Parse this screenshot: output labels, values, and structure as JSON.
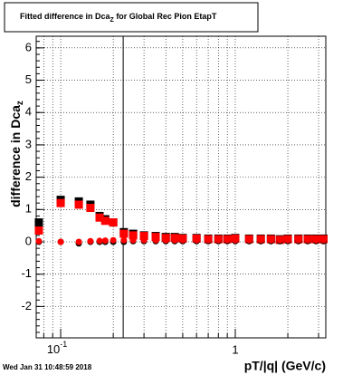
{
  "chart_data": {
    "type": "scatter",
    "title": {
      "text": "Fitted difference in Dca",
      "sub": "Z",
      "rest": " for Global Rec Pion EtapT"
    },
    "y_label": {
      "text": "difference in Dca",
      "sub": "z"
    },
    "x_label": "pT/|q| (GeV/c)",
    "timestamp": "Wed Jan 31 10:48:59 2018",
    "log_x": true,
    "grid": true,
    "xlim": [
      0.0724,
      3.3
    ],
    "ylim": [
      -2.97,
      6.36
    ],
    "xticks": [
      {
        "value": 0.1,
        "label": "10",
        "exponent": "-1"
      },
      1
    ],
    "xminorticks": [
      0.08,
      0.09,
      0.2,
      0.3,
      0.4,
      0.5,
      0.6,
      0.7,
      0.8,
      0.9,
      2,
      3
    ],
    "yticks": [
      -2,
      -1,
      0,
      1,
      2,
      3,
      4,
      5,
      6
    ],
    "vline": 0.228,
    "x": [
      0.075,
      0.1,
      0.127,
      0.148,
      0.167,
      0.18,
      0.2,
      0.23,
      0.26,
      0.3,
      0.35,
      0.4,
      0.45,
      0.5,
      0.6,
      0.7,
      0.8,
      0.9,
      1.0,
      1.2,
      1.4,
      1.6,
      1.8,
      2.0,
      2.3,
      2.6,
      2.9,
      3.2
    ],
    "series": [
      {
        "color": "#000000",
        "marker": "square",
        "values": [
          0.6,
          1.3,
          1.25,
          1.15,
          0.8,
          0.7,
          0.6,
          0.3,
          0.25,
          0.2,
          0.18,
          0.15,
          0.15,
          0.12,
          0.12,
          0.1,
          0.1,
          0.1,
          0.12,
          0.1,
          0.1,
          0.1,
          0.08,
          0.1,
          0.1,
          0.1,
          0.1,
          0.1
        ]
      },
      {
        "color": "#ff0000",
        "marker": "square",
        "values": [
          0.35,
          1.2,
          1.15,
          1.05,
          0.75,
          0.65,
          0.6,
          0.25,
          0.2,
          0.18,
          0.15,
          0.12,
          0.12,
          0.1,
          0.1,
          0.08,
          0.08,
          0.08,
          0.1,
          0.08,
          0.08,
          0.08,
          0.06,
          0.08,
          0.08,
          0.08,
          0.08,
          0.08
        ]
      },
      {
        "color": "#000000",
        "marker": "circle",
        "values": [
          0.0,
          0.0,
          -0.05,
          0.0,
          0.0,
          0.0,
          0.0,
          0.0,
          0.02,
          0.02,
          0.02,
          0.02,
          0.02,
          0.02,
          0.02,
          0.02,
          0.02,
          0.02,
          0.02,
          0.02,
          0.02,
          0.02,
          0.02,
          0.02,
          0.02,
          0.02,
          0.02,
          0.02
        ]
      },
      {
        "color": "#ff0000",
        "marker": "circle",
        "values": [
          0.02,
          0.0,
          0.0,
          0.02,
          0.03,
          0.04,
          0.05,
          0.05,
          0.05,
          0.05,
          0.05,
          0.05,
          0.05,
          0.05,
          0.05,
          0.05,
          0.05,
          0.05,
          0.05,
          0.05,
          0.05,
          0.05,
          0.05,
          0.05,
          0.05,
          0.05,
          0.05,
          0.05
        ]
      }
    ]
  }
}
